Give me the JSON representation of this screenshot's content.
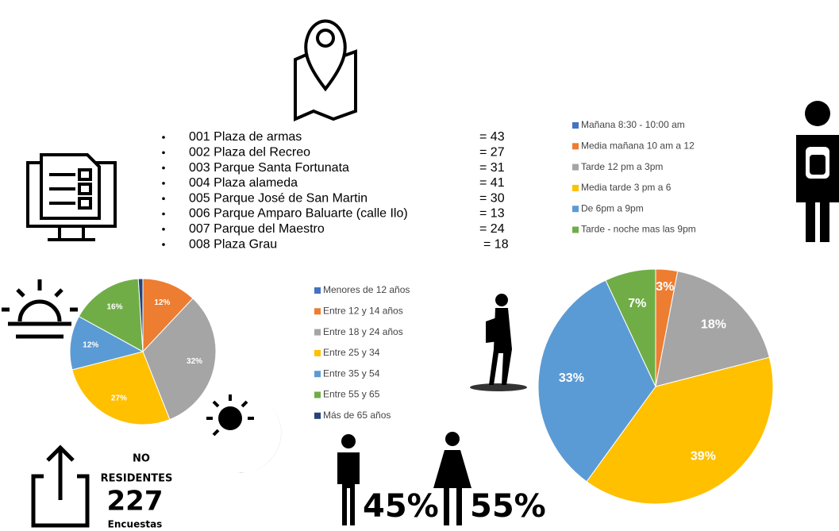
{
  "parks": [
    {
      "name": "001 Plaza de armas",
      "count": "= 43"
    },
    {
      "name": "002 Plaza del Recreo",
      "count": "= 27"
    },
    {
      "name": "003 Parque Santa Fortunata",
      "count": "= 31"
    },
    {
      "name": "004 Plaza alameda",
      "count": "= 41"
    },
    {
      "name": "005 Parque José de San Martin",
      "count": "= 30"
    },
    {
      "name": "006 Parque Amparo Baluarte (calle Ilo)",
      "count": "= 13"
    },
    {
      "name": "007 Parque  del Maestro",
      "count": "= 24"
    },
    {
      "name": "008 Plaza Grau",
      "count": "= 18"
    }
  ],
  "residents": {
    "line1": "NO",
    "line2": "RESIDENTES",
    "number": "227",
    "unit": "Encuestas"
  },
  "gender": {
    "male": "45%",
    "female": "55%"
  },
  "chart_data": [
    {
      "type": "pie",
      "categories": [
        "Menores de 12 años",
        "Entre 12 y 14 años",
        "Entre 18 y 24 años",
        "Entre 25 y 34",
        "Entre 35 y 54",
        "Entre 55 y 65",
        "Más de 65 años"
      ],
      "values": [
        0,
        12,
        32,
        27,
        12,
        16,
        1
      ],
      "value_labels": [
        null,
        "12%",
        "32%",
        "27%",
        "12%",
        "16%",
        null
      ],
      "colors": [
        "#4472c4",
        "#ed7d31",
        "#a5a5a5",
        "#ffc000",
        "#5b9bd5",
        "#70ad47",
        "#264478"
      ]
    },
    {
      "type": "pie",
      "categories": [
        "Mañana 8:30 - 10:00 am",
        "Media mañana  10 am a 12",
        "Tarde 12 pm a 3pm",
        "Media tarde 3 pm a 6",
        "De 6pm a 9pm",
        "Tarde - noche  mas  las 9pm"
      ],
      "values": [
        0,
        3,
        18,
        39,
        33,
        7
      ],
      "value_labels": [
        null,
        "3%",
        "18%",
        "39%",
        "33%",
        "7%"
      ],
      "colors": [
        "#4472c4",
        "#ed7d31",
        "#a5a5a5",
        "#ffc000",
        "#5b9bd5",
        "#70ad47"
      ]
    }
  ]
}
